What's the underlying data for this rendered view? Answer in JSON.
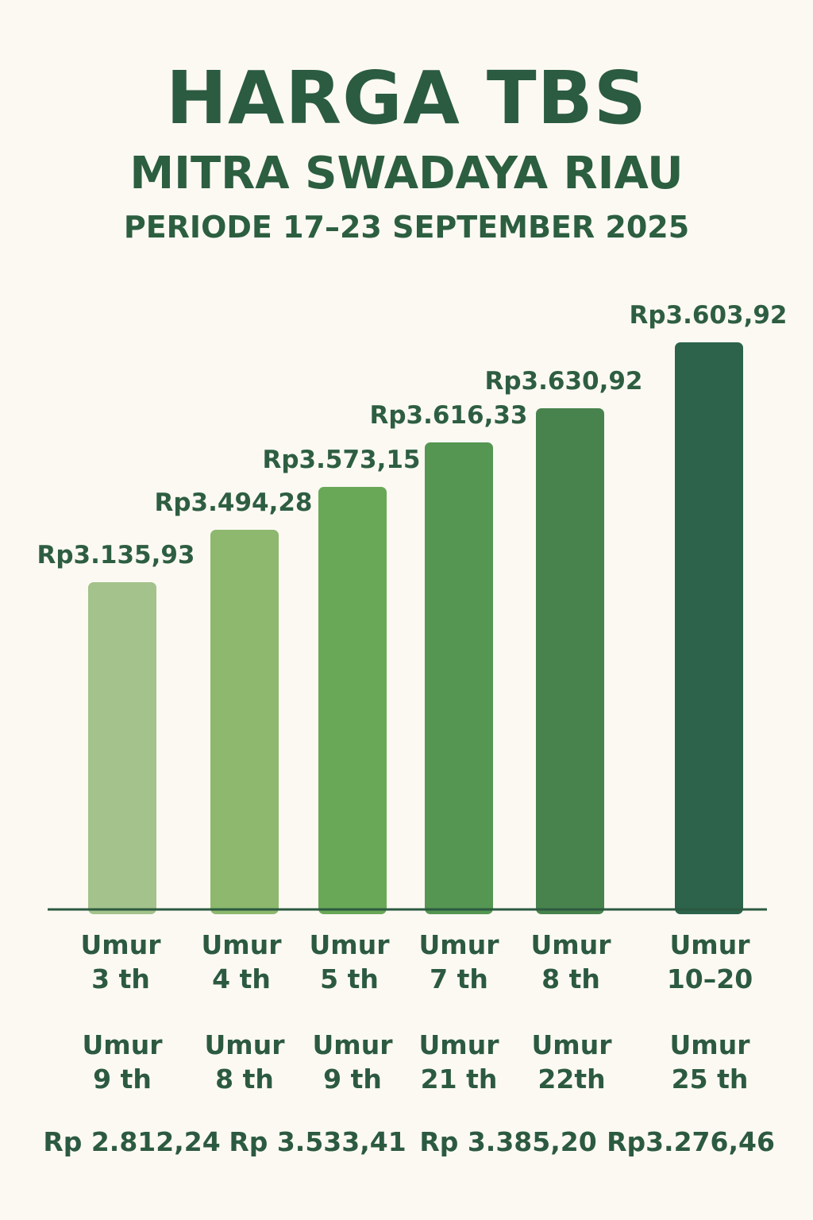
{
  "header": {
    "title": "HARGA TBS",
    "subtitle": "MITRA SWADAYA RIAU",
    "period": "PERIODE 17–23 SEPTEMBER 2025"
  },
  "chart_data": {
    "type": "bar",
    "categories": [
      [
        "Umur",
        "3 th"
      ],
      [
        "Umur",
        "4 th"
      ],
      [
        "Umur",
        "5 th"
      ],
      [
        "Umur",
        "7 th"
      ],
      [
        "Umur",
        "8 th"
      ],
      [
        "Umur",
        "10–20"
      ]
    ],
    "values": [
      3135.93,
      3494.28,
      3573.15,
      3616.33,
      3630.92,
      3603.92
    ],
    "value_labels": [
      "Rp3.135,93",
      "Rp3.494,28",
      "Rp3.573,15",
      "Rp3.616,33",
      "Rp3.630,92",
      "Rp3.603,92"
    ],
    "bar_colors": [
      "#a3c28c",
      "#8db86d",
      "#69a857",
      "#559652",
      "#48834d",
      "#2c634a"
    ],
    "title": "HARGA TBS",
    "subtitle": "MITRA SWADAYA RIAU",
    "ylabel": "",
    "xlabel": "",
    "grid": false,
    "baseline_color": "#2c5a40"
  },
  "extra_ages": [
    [
      "Umur",
      "9 th"
    ],
    [
      "Umur",
      "8 th"
    ],
    [
      "Umur",
      "9 th"
    ],
    [
      "Umur",
      "21 th"
    ],
    [
      "Umur",
      "22th"
    ],
    [
      "Umur",
      "25 th"
    ]
  ],
  "extra_prices": [
    "Rp 2.812,24",
    "Rp 3.533,41",
    "Rp 3.385,20",
    "Rp3.276,46"
  ]
}
